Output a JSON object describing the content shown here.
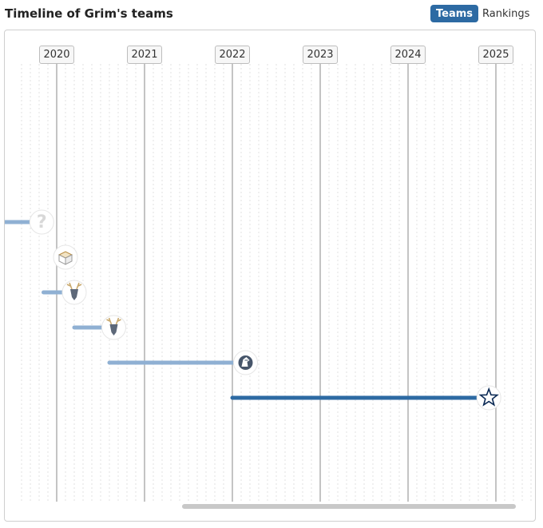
{
  "header": {
    "title": "Timeline of Grim's teams",
    "tabs": [
      {
        "label": "Teams",
        "active": true
      },
      {
        "label": "Rankings",
        "active": false
      }
    ]
  },
  "timeline": {
    "years": [
      "2020",
      "2021",
      "2022",
      "2023",
      "2024",
      "2025"
    ],
    "colors": {
      "past_stint": "#8fb0d3",
      "current_stint": "#2d6aa3",
      "year_line": "#c4c4c4",
      "minor_grid": "#e2e2e2",
      "scrollbar": "#c8c8c8"
    },
    "stints": [
      {
        "icon": "unknown-team-icon",
        "start": 2019.0,
        "end": 2019.83,
        "current": false
      },
      {
        "icon": "package-box-icon",
        "start": 2020.1,
        "end": 2020.1,
        "current": false
      },
      {
        "icon": "deer-head-icon",
        "start": 2019.85,
        "end": 2020.2,
        "current": false
      },
      {
        "icon": "deer-head-icon",
        "start": 2020.2,
        "end": 2020.65,
        "current": false
      },
      {
        "icon": "liquid-horse-icon",
        "start": 2020.6,
        "end": 2022.15,
        "current": false
      },
      {
        "icon": "star-icon",
        "start": 2022.0,
        "end": 2024.92,
        "current": true
      }
    ]
  }
}
